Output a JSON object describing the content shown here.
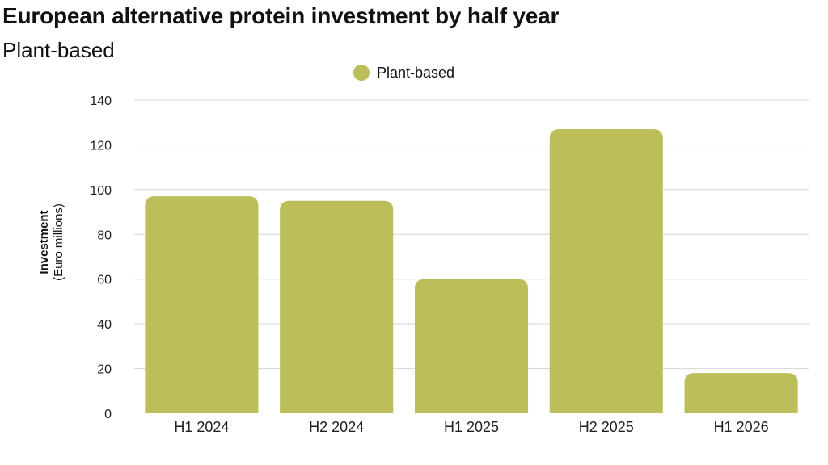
{
  "chart_data": {
    "type": "bar",
    "title": "European alternative protein investment by half year",
    "subtitle": "Plant-based",
    "ylabel": "Investment",
    "ylabel_sub": "(Euro millions)",
    "xlabel": "",
    "categories": [
      "H1 2024",
      "H2 2024",
      "H1 2025",
      "H2 2025",
      "H1 2026"
    ],
    "series": [
      {
        "name": "Plant-based",
        "color": "#bcbe5a",
        "values": [
          97,
          95,
          60,
          127,
          18
        ]
      }
    ],
    "ylim": [
      0,
      140
    ],
    "yticks": [
      0,
      20,
      40,
      60,
      80,
      100,
      120,
      140
    ],
    "grid": true,
    "legend_position": "top-center"
  }
}
